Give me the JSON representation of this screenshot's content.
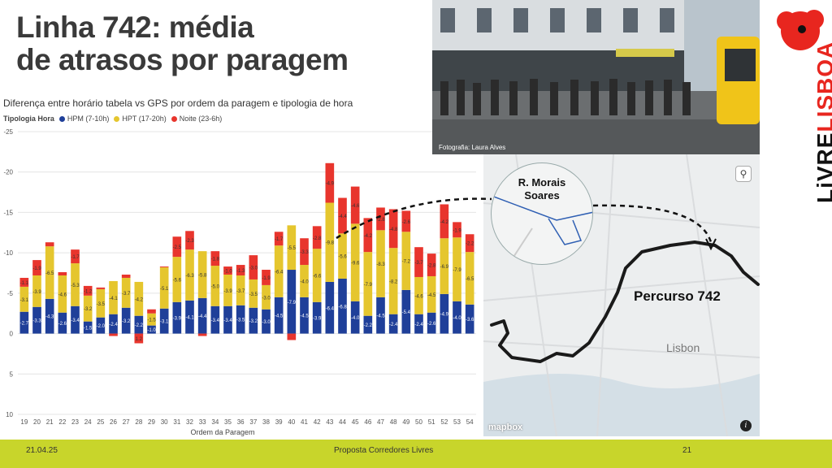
{
  "slide": {
    "title_line1": "Linha 742: média",
    "title_line2": "de atrasos por paragem",
    "footer": {
      "date": "21.04.25",
      "center": "Proposta Corredores Livres",
      "page": "21"
    }
  },
  "photo": {
    "credit": "Fotografia: Laura Alves"
  },
  "map": {
    "magnifier_line1": "R. Morais",
    "magnifier_line2": "Soares",
    "route_label": "Percurso 742",
    "city_label": "Lisbon",
    "attribution": "mapbox",
    "zoom_icon": "magnifier-icon",
    "info_icon": "info-icon"
  },
  "brand": {
    "word1": "LiVRE",
    "word2": "LISBOA",
    "logo_icon": "poppy-flower-icon",
    "accent": "#e8261f"
  },
  "chart_data": {
    "type": "bar",
    "stacked": true,
    "title": "Diferença entre horário tabela vs GPS por ordem da paragem e tipologia de hora",
    "legend_title": "Tipologia Hora",
    "legend_position": "top-left",
    "xlabel": "Ordem da Paragem",
    "ylabel": "",
    "y_axis_reversed": true,
    "ylim": [
      -25,
      10
    ],
    "y_ticks": [
      -25,
      -20,
      -15,
      -10,
      -5,
      0,
      5,
      10
    ],
    "y_tick_labels": [
      "-25",
      "-20",
      "-15",
      "-10",
      "-5",
      "0",
      "5",
      "10"
    ],
    "grid": true,
    "categories": [
      "19",
      "20",
      "21",
      "22",
      "23",
      "24",
      "25",
      "26",
      "27",
      "28",
      "29",
      "30",
      "31",
      "32",
      "33",
      "34",
      "35",
      "36",
      "37",
      "38",
      "39",
      "40",
      "41",
      "42",
      "43",
      "44",
      "45",
      "46",
      "47",
      "48",
      "49",
      "50",
      "51",
      "52",
      "53",
      "54"
    ],
    "series": [
      {
        "name": "HPM (7-10h)",
        "color": "#1f3f99",
        "values": [
          -2.7,
          -3.3,
          -4.3,
          -2.6,
          -3.4,
          -1.5,
          -2.0,
          -2.4,
          -3.2,
          -2.2,
          -1.0,
          -3.1,
          -3.9,
          -4.1,
          -4.4,
          -3.4,
          -3.4,
          -3.5,
          -3.2,
          -3.0,
          -4.5,
          -7.9,
          -4.5,
          -3.9,
          -6.4,
          -6.8,
          -4.0,
          -2.2,
          -4.5,
          -2.4,
          -5.4,
          -2.4,
          -2.6,
          -4.9,
          -4.0,
          -3.6
        ]
      },
      {
        "name": "HPT (17-20h)",
        "color": "#e5c62e",
        "values": [
          -3.1,
          -3.9,
          -6.5,
          -4.6,
          -5.3,
          -3.2,
          -3.5,
          -4.1,
          -3.7,
          -4.2,
          -1.5,
          -5.1,
          -5.6,
          -6.3,
          -5.8,
          -5.0,
          -3.9,
          -3.7,
          -3.5,
          -3.0,
          -6.4,
          -5.5,
          -4.0,
          -6.6,
          -9.8,
          -5.6,
          -9.6,
          -7.9,
          -8.3,
          -8.2,
          -7.2,
          -4.6,
          -4.5,
          -6.9,
          -7.9,
          -6.5
        ]
      },
      {
        "name": "Noite (23-6h)",
        "color": "#e8352d",
        "values": [
          -1.1,
          -1.9,
          -0.5,
          -0.4,
          -1.7,
          -1.2,
          -0.2,
          0.3,
          -0.4,
          1.2,
          -0.5,
          -0.1,
          -2.5,
          -2.3,
          0.3,
          -1.8,
          -1.0,
          -1.3,
          -3.0,
          -1.9,
          -1.7,
          0.8,
          -3.3,
          -2.8,
          -4.9,
          -4.4,
          -4.6,
          -4.2,
          -2.8,
          -4.8,
          -2.6,
          -3.7,
          -2.8,
          -4.2,
          -1.9,
          -2.2
        ]
      }
    ],
    "bar_labels": {
      "HPM (7-10h)": [
        "-2.7",
        "-3.3",
        "-4.3",
        "-2.6",
        "-3.4",
        "-1.5",
        "-2.0",
        "-2.4",
        "-3.2",
        "-2.2",
        "-1.0",
        "-3.1",
        "-3.9",
        "-4.1",
        "-4.4",
        "-3.4",
        "-3.4",
        "-3.5",
        "-3.2",
        "-3.0",
        "-4.5",
        "-7.9",
        "-4.5",
        "-3.9",
        "-6.4",
        "-6.8",
        "-4.0",
        "-2.2",
        "-4.5",
        "-2.4",
        "-5.4",
        "-2.4",
        "-2.6",
        "-4.9",
        "-4.0",
        "-3.6"
      ],
      "HPT (17-20h)": [
        "-3.1",
        "-3.9",
        "-6.5",
        "-4.6",
        "-5.3",
        "-3.2",
        "-3.5",
        "-4.1",
        "-3.7",
        "-4.2",
        "-1.5",
        "-5.1",
        "-5.6",
        "-6.3",
        "-5.8",
        "-5.0",
        "-3.9",
        "-3.7",
        "-3.5",
        "-3.0",
        "-6.4",
        "-5.5",
        "-4.0",
        "-6.6",
        "-9.8",
        "-5.6",
        "-9.6",
        "-7.9",
        "-8.3",
        "-8.2",
        "-7.2",
        "-4.6",
        "-4.5",
        "-6.9",
        "-7.9",
        "-6.5"
      ],
      "Noite (23-6h)": [
        "-1.1",
        "-1.9",
        "",
        "",
        "-1.7",
        "-1.2",
        "",
        "",
        "",
        "1.2",
        "",
        "",
        "-2.5",
        "-2.3",
        "",
        "-1.8",
        "-1.0",
        "-1.3",
        "-3.0",
        "-1.9",
        "-1.7",
        "",
        "-3.3",
        "-2.8",
        "-4.9",
        "-4.4",
        "-4.6",
        "-4.2",
        "-2.8",
        "-4.8",
        "-2.6",
        "-3.7",
        "-2.8",
        "-4.2",
        "-1.9",
        "-2.2"
      ]
    }
  }
}
